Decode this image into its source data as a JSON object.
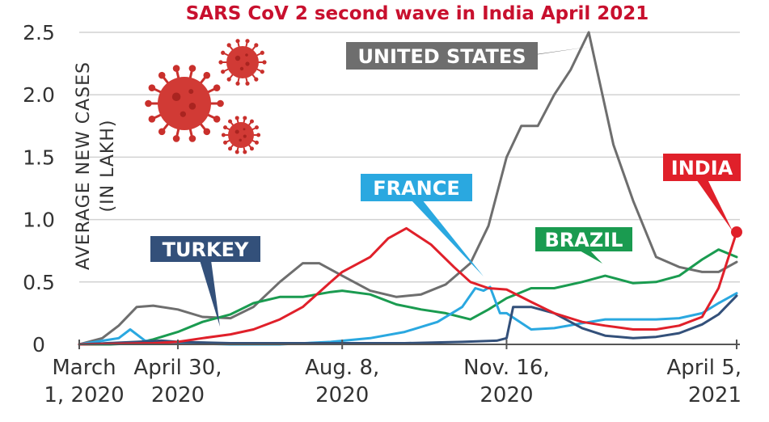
{
  "chart_data": {
    "type": "line",
    "title": "SARS CoV 2 second wave in India April 2021",
    "ylabel_line1": "AVERAGE NEW CASES",
    "ylabel_line2": "(IN LAKH)",
    "ylim": [
      0,
      2.5
    ],
    "y_ticks": [
      "0",
      "0.5",
      "1.0",
      "1.5",
      "2.0",
      "2.5"
    ],
    "x_ticks": [
      {
        "line1": "March",
        "line2": "1, 2020"
      },
      {
        "line1": "April 30,",
        "line2": "2020"
      },
      {
        "line1": "Aug. 8,",
        "line2": "2020"
      },
      {
        "line1": "Nov. 16,",
        "line2": "2020"
      },
      {
        "line1": "April 5,",
        "line2": "2021"
      }
    ],
    "x_dates": [
      "2020-03-01",
      "2020-04-30",
      "2020-08-08",
      "2020-11-16",
      "2021-04-05"
    ],
    "grid": true,
    "series": [
      {
        "name": "UNITED STATES",
        "color": "#6e6e6e",
        "x": [
          "2020-03-01",
          "2020-03-15",
          "2020-03-25",
          "2020-04-05",
          "2020-04-15",
          "2020-04-30",
          "2020-05-15",
          "2020-06-01",
          "2020-06-15",
          "2020-07-01",
          "2020-07-15",
          "2020-07-25",
          "2020-08-08",
          "2020-08-25",
          "2020-09-10",
          "2020-09-25",
          "2020-10-10",
          "2020-10-25",
          "2020-11-05",
          "2020-11-16",
          "2020-11-25",
          "2020-12-05",
          "2020-12-15",
          "2020-12-25",
          "2021-01-05",
          "2021-01-10",
          "2021-01-20",
          "2021-02-01",
          "2021-02-15",
          "2021-03-01",
          "2021-03-15",
          "2021-03-25",
          "2021-04-05"
        ],
        "y": [
          0.0,
          0.05,
          0.15,
          0.3,
          0.31,
          0.28,
          0.22,
          0.21,
          0.3,
          0.5,
          0.65,
          0.65,
          0.55,
          0.43,
          0.38,
          0.4,
          0.48,
          0.65,
          0.95,
          1.5,
          1.75,
          1.75,
          2.0,
          2.2,
          2.5,
          2.2,
          1.6,
          1.15,
          0.7,
          0.62,
          0.58,
          0.58,
          0.66
        ]
      },
      {
        "name": "INDIA",
        "color": "#e0202a",
        "x": [
          "2020-03-01",
          "2020-04-15",
          "2020-04-30",
          "2020-05-15",
          "2020-06-01",
          "2020-06-15",
          "2020-07-01",
          "2020-07-15",
          "2020-08-01",
          "2020-08-08",
          "2020-08-25",
          "2020-09-05",
          "2020-09-16",
          "2020-10-01",
          "2020-10-15",
          "2020-10-25",
          "2020-11-05",
          "2020-11-16",
          "2020-12-01",
          "2020-12-15",
          "2021-01-01",
          "2021-01-15",
          "2021-02-01",
          "2021-02-15",
          "2021-03-01",
          "2021-03-15",
          "2021-03-25",
          "2021-04-05"
        ],
        "y": [
          0.0,
          0.01,
          0.02,
          0.05,
          0.08,
          0.12,
          0.2,
          0.3,
          0.5,
          0.58,
          0.7,
          0.85,
          0.93,
          0.8,
          0.62,
          0.5,
          0.45,
          0.44,
          0.34,
          0.25,
          0.18,
          0.15,
          0.12,
          0.12,
          0.15,
          0.22,
          0.45,
          0.9
        ]
      },
      {
        "name": "BRAZIL",
        "color": "#1a9b50",
        "x": [
          "2020-03-01",
          "2020-03-20",
          "2020-04-05",
          "2020-04-15",
          "2020-04-30",
          "2020-05-15",
          "2020-06-01",
          "2020-06-15",
          "2020-07-01",
          "2020-07-15",
          "2020-08-01",
          "2020-08-08",
          "2020-08-25",
          "2020-09-10",
          "2020-09-25",
          "2020-10-10",
          "2020-10-25",
          "2020-11-05",
          "2020-11-16",
          "2020-12-01",
          "2020-12-15",
          "2021-01-01",
          "2021-01-15",
          "2021-02-01",
          "2021-02-15",
          "2021-03-01",
          "2021-03-15",
          "2021-03-25",
          "2021-04-05"
        ],
        "y": [
          0.0,
          0.0,
          0.01,
          0.04,
          0.1,
          0.18,
          0.24,
          0.33,
          0.38,
          0.38,
          0.42,
          0.43,
          0.4,
          0.32,
          0.28,
          0.25,
          0.2,
          0.28,
          0.37,
          0.45,
          0.45,
          0.5,
          0.55,
          0.49,
          0.5,
          0.55,
          0.68,
          0.76,
          0.7
        ]
      },
      {
        "name": "FRANCE",
        "color": "#2aa8e0",
        "x": [
          "2020-03-01",
          "2020-03-25",
          "2020-04-01",
          "2020-04-10",
          "2020-04-30",
          "2020-06-01",
          "2020-07-01",
          "2020-08-01",
          "2020-08-25",
          "2020-09-15",
          "2020-10-05",
          "2020-10-20",
          "2020-10-28",
          "2020-11-02",
          "2020-11-06",
          "2020-11-12",
          "2020-11-16",
          "2020-12-01",
          "2020-12-15",
          "2021-01-01",
          "2021-01-15",
          "2021-02-01",
          "2021-02-15",
          "2021-03-01",
          "2021-03-15",
          "2021-03-25",
          "2021-04-05"
        ],
        "y": [
          0.0,
          0.05,
          0.12,
          0.03,
          0.01,
          0.0,
          0.0,
          0.02,
          0.05,
          0.1,
          0.18,
          0.3,
          0.45,
          0.43,
          0.46,
          0.25,
          0.25,
          0.12,
          0.13,
          0.17,
          0.2,
          0.2,
          0.2,
          0.21,
          0.25,
          0.33,
          0.41
        ]
      },
      {
        "name": "TURKEY",
        "color": "#33507a",
        "x": [
          "2020-03-01",
          "2020-04-05",
          "2020-04-20",
          "2020-04-30",
          "2020-06-01",
          "2020-07-01",
          "2020-08-08",
          "2020-09-15",
          "2020-10-20",
          "2020-11-10",
          "2020-11-16",
          "2020-11-20",
          "2020-12-01",
          "2020-12-15",
          "2021-01-01",
          "2021-01-15",
          "2021-02-01",
          "2021-02-15",
          "2021-03-01",
          "2021-03-15",
          "2021-03-25",
          "2021-04-05"
        ],
        "y": [
          0.0,
          0.02,
          0.03,
          0.02,
          0.01,
          0.01,
          0.01,
          0.01,
          0.02,
          0.03,
          0.05,
          0.3,
          0.3,
          0.25,
          0.13,
          0.07,
          0.05,
          0.06,
          0.09,
          0.16,
          0.24,
          0.39
        ]
      }
    ],
    "labels": [
      {
        "series": "UNITED STATES",
        "text": "UNITED STATES"
      },
      {
        "series": "INDIA",
        "text": "INDIA"
      },
      {
        "series": "FRANCE",
        "text": "FRANCE"
      },
      {
        "series": "BRAZIL",
        "text": "BRAZIL"
      },
      {
        "series": "TURKEY",
        "text": "TURKEY"
      }
    ]
  }
}
